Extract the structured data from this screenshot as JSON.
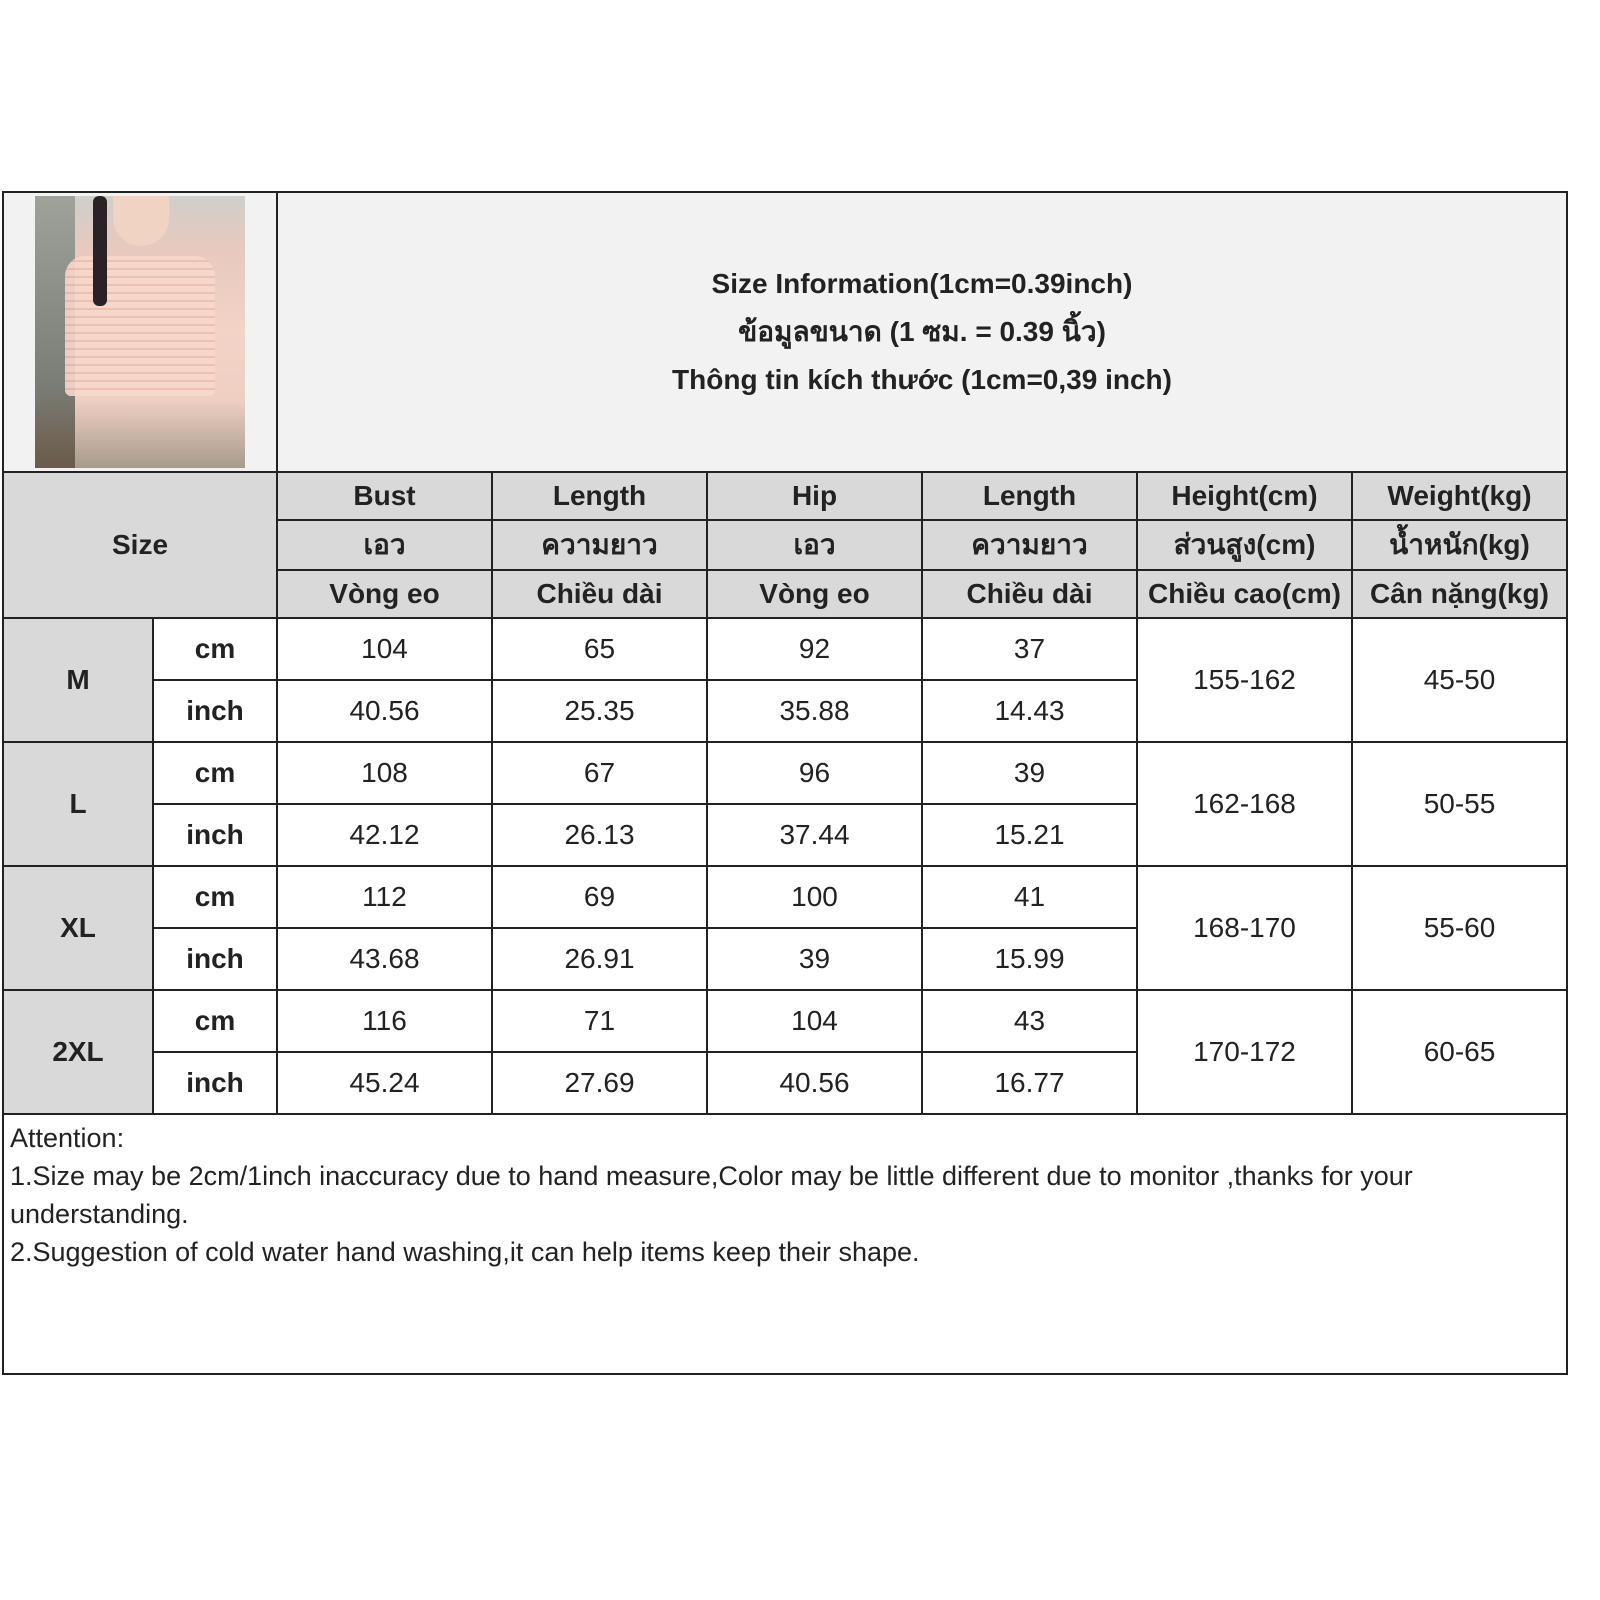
{
  "title": {
    "line1": "Size Information(1cm=0.39inch)",
    "line2": "ข้อมูลขนาด (1 ซม. = 0.39 นิ้ว)",
    "line3": "Thông tin kích thước (1cm=0,39 inch)"
  },
  "size_label": "Size",
  "columns": [
    {
      "en": "Bust",
      "th": "เอว",
      "vi": "Vòng eo"
    },
    {
      "en": "Length",
      "th": "ความยาว",
      "vi": "Chiều dài"
    },
    {
      "en": "Hip",
      "th": "เอว",
      "vi": "Vòng eo"
    },
    {
      "en": "Length",
      "th": "ความยาว",
      "vi": "Chiều dài"
    },
    {
      "en": "Height(cm)",
      "th": "ส่วนสูง(cm)",
      "vi": "Chiều cao(cm)"
    },
    {
      "en": "Weight(kg)",
      "th": "น้ำหนัก(kg)",
      "vi": "Cân nặng(kg)"
    }
  ],
  "units": {
    "cm": "cm",
    "inch": "inch"
  },
  "sizes": [
    {
      "name": "M",
      "cm": [
        "104",
        "65",
        "92",
        "37"
      ],
      "inch": [
        "40.56",
        "25.35",
        "35.88",
        "14.43"
      ],
      "height": "155-162",
      "weight": "45-50"
    },
    {
      "name": "L",
      "cm": [
        "108",
        "67",
        "96",
        "39"
      ],
      "inch": [
        "42.12",
        "26.13",
        "37.44",
        "15.21"
      ],
      "height": "162-168",
      "weight": "50-55"
    },
    {
      "name": "XL",
      "cm": [
        "112",
        "69",
        "100",
        "41"
      ],
      "inch": [
        "43.68",
        "26.91",
        "39",
        "15.99"
      ],
      "height": "168-170",
      "weight": "55-60"
    },
    {
      "name": "2XL",
      "cm": [
        "116",
        "71",
        "104",
        "43"
      ],
      "inch": [
        "45.24",
        "27.69",
        "40.56",
        "16.77"
      ],
      "height": "170-172",
      "weight": "60-65"
    }
  ],
  "notes": {
    "heading": "Attention:",
    "items": [
      "1.Size may be 2cm/1inch inaccuracy due to hand measure,Color may be little different due to monitor ,thanks for your understanding.",
      "2.Suggestion of cold water hand washing,it can help items keep their shape."
    ]
  },
  "colors": {
    "header_gray": "#d9d9d9",
    "title_bg": "#f2f2f2",
    "border": "#222222"
  }
}
